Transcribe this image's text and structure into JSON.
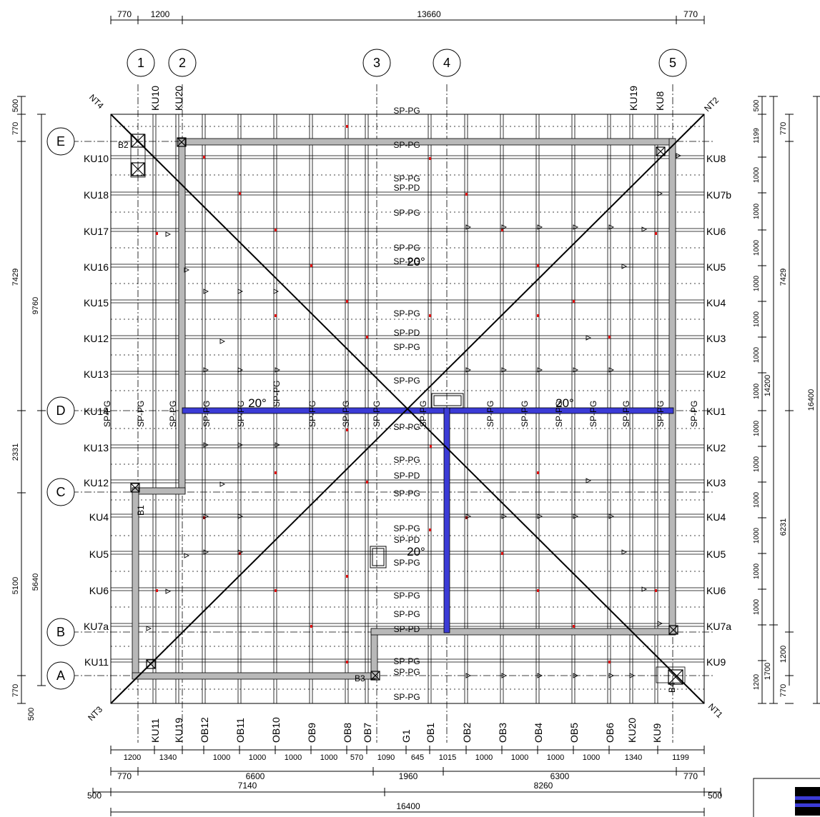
{
  "dims_top": {
    "seg": [
      "770",
      "1200",
      "13660",
      "770"
    ]
  },
  "dims_bottom": {
    "row1": [
      "1200",
      "1340",
      "1000",
      "1000",
      "1000",
      "1000",
      "570",
      "1090",
      "645",
      "1015",
      "1000",
      "1000",
      "1000",
      "1000",
      "1340",
      "1199"
    ],
    "row2": [
      "770",
      "6600",
      "1960",
      "6300",
      "770"
    ],
    "row3": [
      "500",
      "7140",
      "8260",
      "500"
    ],
    "total": "16400"
  },
  "dims_left": {
    "outer": [
      "500",
      "770",
      "7429",
      "2331",
      "5100",
      "770",
      "500"
    ],
    "inner": [
      "9760",
      "5640"
    ]
  },
  "dims_right": {
    "fine": [
      "500",
      "1199",
      "1000",
      "1000",
      "1000",
      "1000",
      "1000",
      "1000",
      "1000",
      "1000",
      "1000",
      "1000",
      "1000",
      "1000",
      "1000",
      "1200"
    ],
    "mid": [
      "770",
      "7429",
      "6231",
      "1200",
      "770"
    ],
    "lower": [
      "14200",
      "1700"
    ],
    "total": "16400"
  },
  "axes_v": [
    "1",
    "2",
    "3",
    "4",
    "5"
  ],
  "axes_h": [
    "E",
    "D",
    "C",
    "B",
    "A"
  ],
  "ku_left": [
    "KU10",
    "KU18",
    "KU17",
    "KU16",
    "KU15",
    "KU12",
    "KU13",
    "KU14",
    "KU13",
    "KU12",
    "KU4",
    "KU5",
    "KU6",
    "KU7a",
    "KU11"
  ],
  "ku_right": [
    "KU8",
    "KU7b",
    "KU6",
    "KU5",
    "KU4",
    "KU3",
    "KU2",
    "KU1",
    "KU2",
    "KU3",
    "KU4",
    "KU5",
    "KU6",
    "KU7a",
    "KU9"
  ],
  "top_labels": [
    "KU10",
    "KU20",
    "KU19",
    "KU8"
  ],
  "bottom_labels": [
    "KU11",
    "KU19",
    "OB12",
    "OB11",
    "OB10",
    "OB9",
    "OB8",
    "OB7",
    "G1",
    "OB1",
    "OB2",
    "OB3",
    "OB4",
    "OB5",
    "OB6",
    "KU20",
    "KU9"
  ],
  "corners": [
    "NT4",
    "NT2",
    "NT3",
    "NT1"
  ],
  "sp_center": [
    "SP-PG",
    "SP-PG",
    "SP-PG",
    "SP-PD",
    "SP-PG",
    "SP-PG",
    "SP-PG",
    "SP-PG",
    "SP-PD",
    "SP-PG",
    "SP-PG",
    "SP-PG",
    "SP-PG",
    "SP-PD",
    "SP-PG",
    "SP-PG",
    "SP-PD",
    "SP-PG",
    "SP-PG",
    "SP-PG",
    "SP-PD",
    "SP-PG",
    "SP-PG",
    "SP-PG"
  ],
  "sp_ridge": [
    "SP-PG",
    "SP-PG",
    "SP-PG",
    "SP-PG",
    "SP-PG",
    "SP-PG",
    "SP-PG",
    "SP-PG",
    "SP-PG",
    "SP-PG",
    "SP-PG",
    "SP-PG",
    "SP-PG",
    "SP-PG",
    "SP-PG",
    "SP-PG",
    "SP-PG"
  ],
  "angles": [
    "20°",
    "20°",
    "20°",
    "20°"
  ],
  "beams": [
    "B1",
    "B2",
    "B3",
    "B4"
  ],
  "colors": {
    "ridge_blue": "#3b3bd6",
    "plate_gray": "#b8b8b8",
    "marker_red": "#e01010"
  }
}
